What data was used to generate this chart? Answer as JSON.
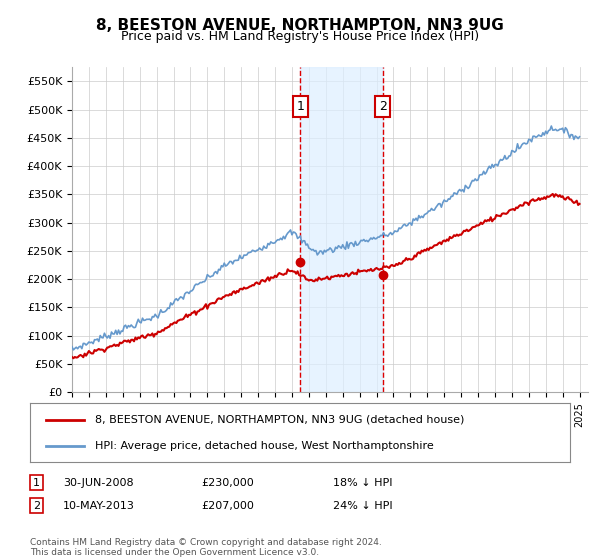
{
  "title": "8, BEESTON AVENUE, NORTHAMPTON, NN3 9UG",
  "subtitle": "Price paid vs. HM Land Registry's House Price Index (HPI)",
  "ylabel_ticks": [
    "£0",
    "£50K",
    "£100K",
    "£150K",
    "£200K",
    "£250K",
    "£300K",
    "£350K",
    "£400K",
    "£450K",
    "£500K",
    "£550K"
  ],
  "ytick_values": [
    0,
    50000,
    100000,
    150000,
    200000,
    250000,
    300000,
    350000,
    400000,
    450000,
    500000,
    550000
  ],
  "ylim": [
    0,
    575000
  ],
  "xlim_start": 1995.0,
  "xlim_end": 2025.5,
  "sale1_x": 2008.5,
  "sale1_y": 230000,
  "sale1_label": "1",
  "sale1_date": "30-JUN-2008",
  "sale1_price": "£230,000",
  "sale1_hpi": "18% ↓ HPI",
  "sale2_x": 2013.36,
  "sale2_y": 207000,
  "sale2_label": "2",
  "sale2_date": "10-MAY-2013",
  "sale2_price": "£207,000",
  "sale2_hpi": "24% ↓ HPI",
  "line1_color": "#cc0000",
  "line2_color": "#6699cc",
  "shade_color": "#ddeeff",
  "vline_color": "#dd0000",
  "legend_line1": "8, BEESTON AVENUE, NORTHAMPTON, NN3 9UG (detached house)",
  "legend_line2": "HPI: Average price, detached house, West Northamptonshire",
  "footer": "Contains HM Land Registry data © Crown copyright and database right 2024.\nThis data is licensed under the Open Government Licence v3.0.",
  "background_color": "#ffffff",
  "grid_color": "#cccccc"
}
